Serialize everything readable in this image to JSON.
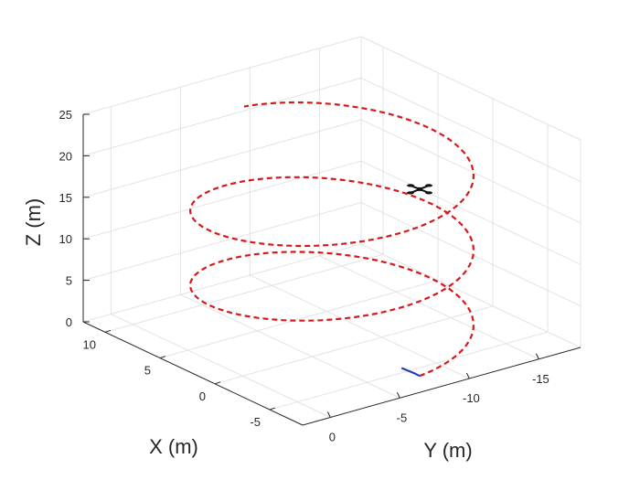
{
  "chart_data": {
    "type": "line3d",
    "xlabel": "X (m)",
    "ylabel": "Y (m)",
    "zlabel": "Z (m)",
    "xlim": [
      -8,
      12
    ],
    "ylim": [
      -18,
      2
    ],
    "zlim": [
      0,
      25
    ],
    "x_ticks": [
      -5,
      0,
      5,
      10
    ],
    "y_ticks": [
      -15,
      -10,
      -5,
      0
    ],
    "z_ticks": [
      0,
      5,
      10,
      15,
      20,
      25
    ],
    "x_tick_labels": [
      "-5",
      "0",
      "5",
      "10"
    ],
    "y_tick_labels": [
      "-15",
      "-10",
      "-5",
      "0"
    ],
    "z_tick_labels": [
      "0",
      "5",
      "10",
      "15",
      "20",
      "25"
    ],
    "grid": true,
    "series": [
      {
        "style": "dashed",
        "color": "#d7191c",
        "path": {
          "kind": "helix",
          "center_x": 2,
          "center_y": -8,
          "radius": 8,
          "start_angle_deg": 180,
          "end_angle_deg": 1080,
          "z_start": 0,
          "z_end": 22.5
        }
      },
      {
        "style": "solid",
        "color": "#1f3fbf",
        "points": [
          [
            -6.0,
            -8.0,
            0.0
          ],
          [
            -5.99,
            -7.62,
            0.5
          ],
          [
            -5.93,
            -6.75,
            1.5
          ]
        ]
      }
    ],
    "marker": {
      "shape": "quadrotor-icon",
      "color": "#111111",
      "position": [
        -6.0,
        -8.0,
        22.5
      ]
    }
  }
}
